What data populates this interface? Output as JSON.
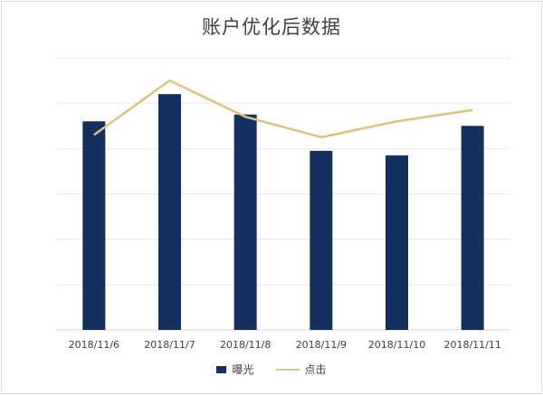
{
  "chart_data": {
    "type": "bar",
    "title": "账户优化后数据",
    "categories": [
      "2018/11/6",
      "2018/11/7",
      "2018/11/8",
      "2018/11/9",
      "2018/11/10",
      "2018/11/11"
    ],
    "ylim": [
      0,
      6
    ],
    "grid": true,
    "legend": "bottom-center",
    "series": [
      {
        "name": "曝光",
        "type": "bar",
        "color": "#13305f",
        "values": [
          4.6,
          5.2,
          4.75,
          3.95,
          3.85,
          4.5
        ]
      },
      {
        "name": "点击",
        "type": "line",
        "color": "#dbc27e",
        "values": [
          4.3,
          5.5,
          4.7,
          4.25,
          4.6,
          4.85
        ]
      }
    ]
  }
}
